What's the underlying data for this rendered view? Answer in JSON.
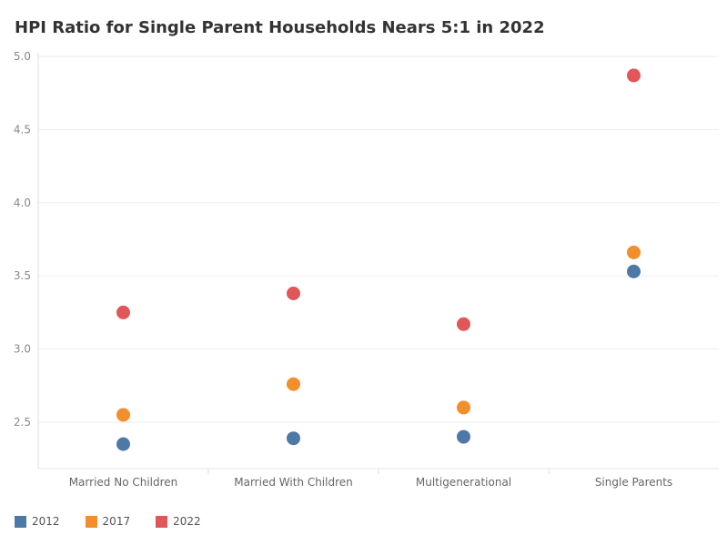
{
  "chart_data": {
    "type": "scatter",
    "title": "HPI Ratio for Single Parent Households Nears 5:1 in 2022",
    "xlabel": "",
    "ylabel": "",
    "categories": [
      "Married No Children",
      "Married With Children",
      "Multigenerational",
      "Single Parents"
    ],
    "yticks": [
      "2.5",
      "3.0",
      "3.5",
      "4.0",
      "4.5",
      "5.0"
    ],
    "ylim": [
      2.2,
      5.0
    ],
    "grid": true,
    "legend_position": "bottom-left",
    "series": [
      {
        "name": "2012",
        "color": "#4e79a7",
        "values": [
          2.35,
          2.39,
          2.4,
          3.53
        ]
      },
      {
        "name": "2017",
        "color": "#f28e2b",
        "values": [
          2.55,
          2.76,
          2.6,
          3.66
        ]
      },
      {
        "name": "2022",
        "color": "#e15759",
        "values": [
          3.25,
          3.38,
          3.17,
          4.87
        ]
      }
    ]
  }
}
